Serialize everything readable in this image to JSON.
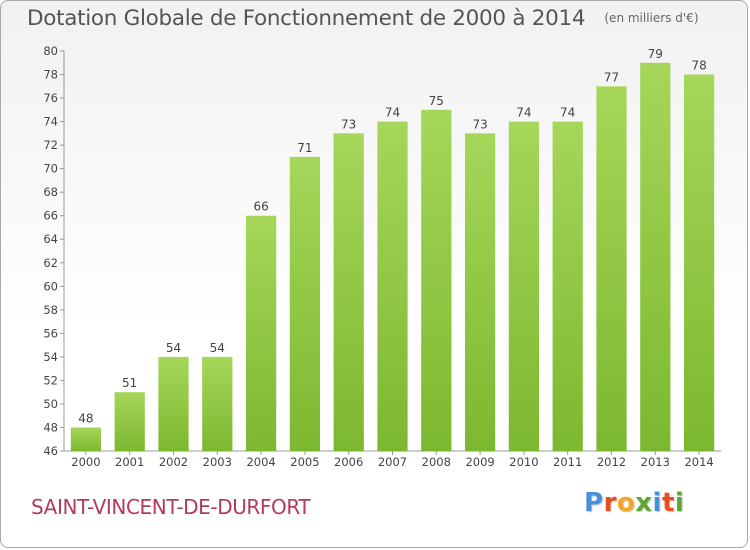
{
  "title": "Dotation Globale de Fonctionnement de 2000 à 2014",
  "unit_note": "(en milliers d'€)",
  "commune": "SAINT-VINCENT-DE-DURFORT",
  "logo": {
    "letters": [
      "P",
      "r",
      "o",
      "x",
      "i",
      "t",
      "i"
    ],
    "colors": [
      "#4a90d9",
      "#e94e1b",
      "#f5a623",
      "#5aa832",
      "#4a90d9",
      "#e94e1b",
      "#5aa832"
    ]
  },
  "chart_data": {
    "type": "bar",
    "title": "Dotation Globale de Fonctionnement de 2000 à 2014",
    "categories": [
      "2000",
      "2001",
      "2002",
      "2003",
      "2004",
      "2005",
      "2006",
      "2007",
      "2008",
      "2009",
      "2010",
      "2011",
      "2012",
      "2013",
      "2014"
    ],
    "values": [
      48,
      51,
      54,
      54,
      66,
      71,
      73,
      74,
      75,
      73,
      74,
      74,
      77,
      79,
      78
    ],
    "ylim": [
      46,
      80
    ],
    "yticks": [
      46,
      48,
      50,
      52,
      54,
      56,
      58,
      60,
      62,
      64,
      66,
      68,
      70,
      72,
      74,
      76,
      78,
      80
    ],
    "xlabel": "",
    "ylabel": "",
    "grid": false,
    "bar_color": "#7cb82f",
    "bar_color_light": "#a6d65a"
  }
}
